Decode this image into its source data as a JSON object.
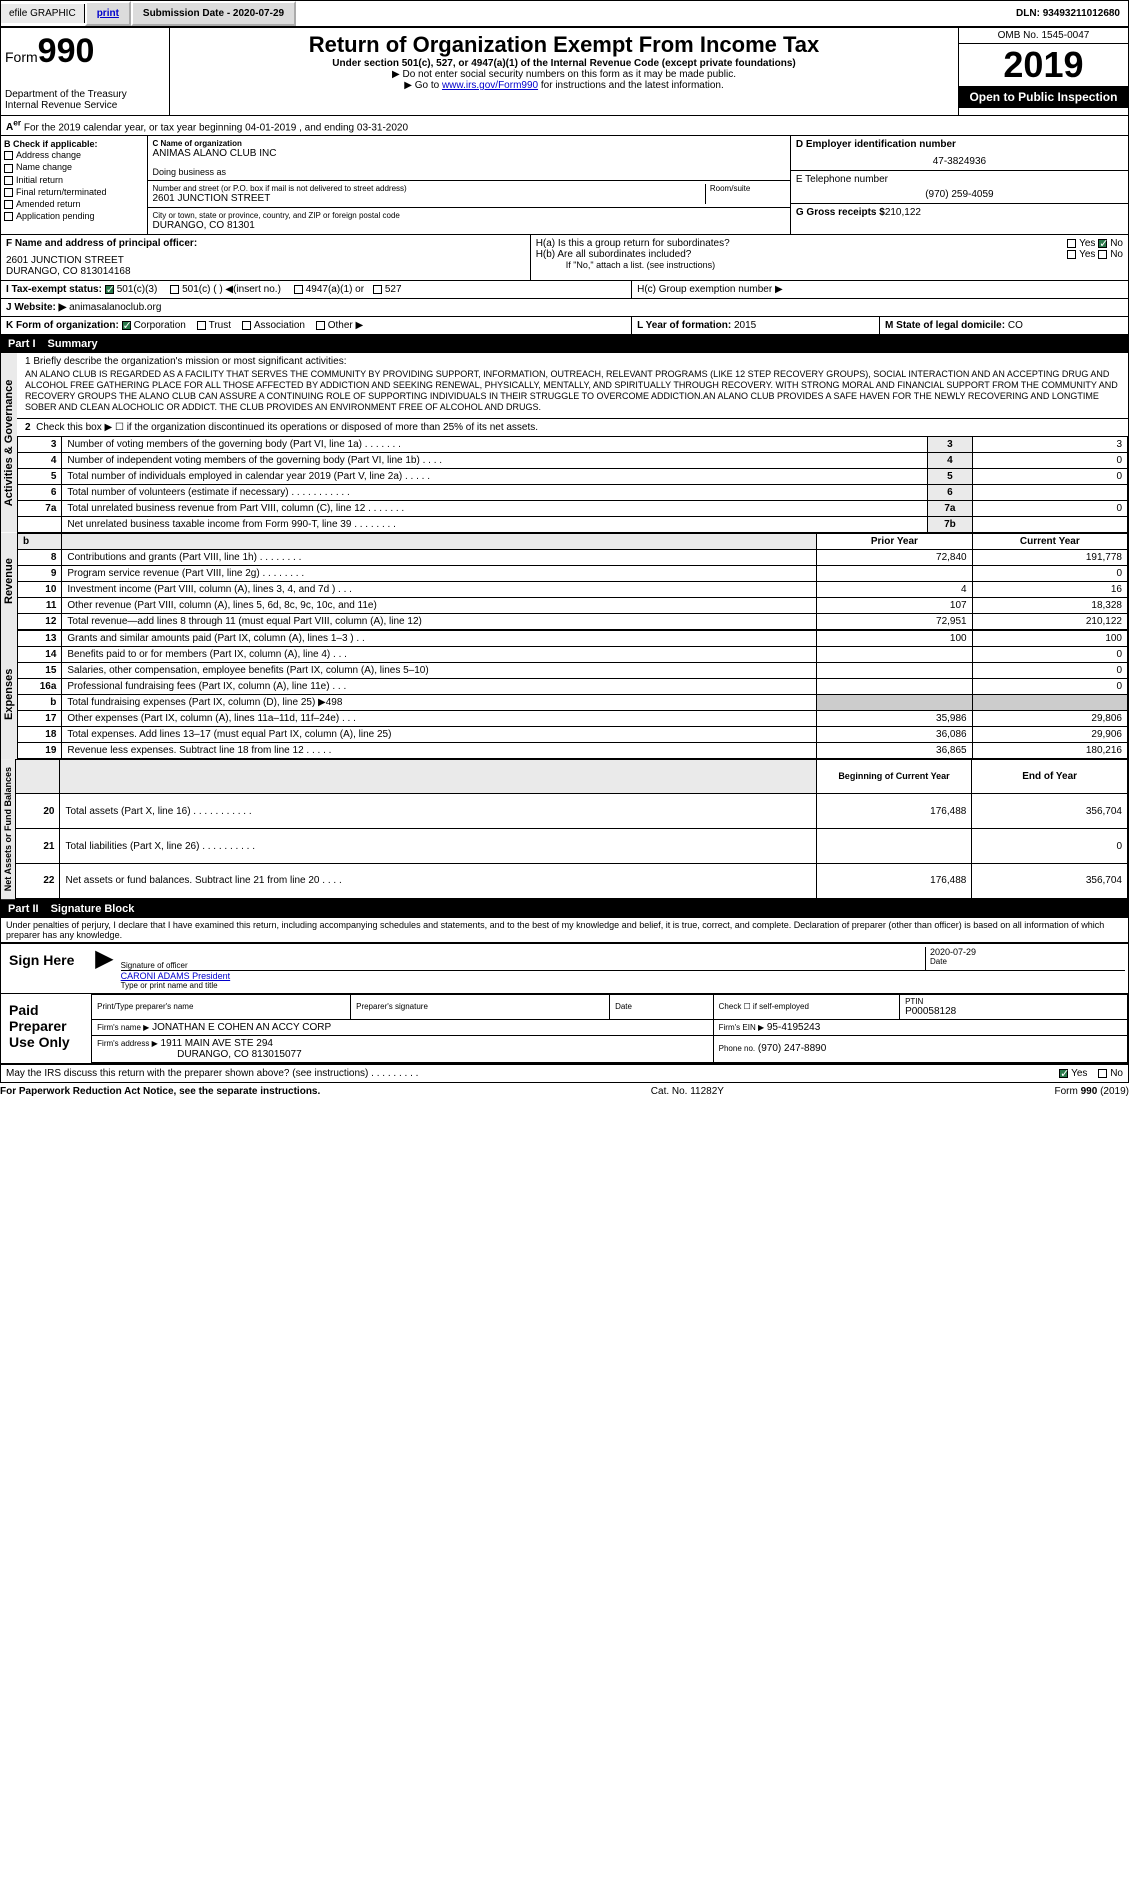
{
  "topbar": {
    "efile": "efile GRAPHIC",
    "print": "print",
    "submission_label": "Submission Date - ",
    "submission_date": "2020-07-29",
    "dln_label": "DLN: ",
    "dln": "93493211012680"
  },
  "header": {
    "form_label": "Form",
    "form_num": "990",
    "dept": "Department of the Treasury",
    "irs": "Internal Revenue Service",
    "title": "Return of Organization Exempt From Income Tax",
    "subtitle": "Under section 501(c), 527, or 4947(a)(1) of the Internal Revenue Code (except private foundations)",
    "note1": "▶ Do not enter social security numbers on this form as it may be made public.",
    "note2_pre": "▶ Go to ",
    "note2_link": "www.irs.gov/Form990",
    "note2_post": " for instructions and the latest information.",
    "omb": "OMB No. 1545-0047",
    "year": "2019",
    "open": "Open to Public Inspection"
  },
  "period": {
    "text": "For the 2019 calendar year, or tax year beginning 04-01-2019    , and ending 03-31-2020"
  },
  "section_b": {
    "label": "B Check if applicable:",
    "items": [
      "Address change",
      "Name change",
      "Initial return",
      "Final return/terminated",
      "Amended return",
      "Application pending"
    ]
  },
  "section_c": {
    "name_label": "C Name of organization",
    "name": "ANIMAS ALANO CLUB INC",
    "dba_label": "Doing business as",
    "dba": "",
    "addr_label": "Number and street (or P.O. box if mail is not delivered to street address)",
    "addr": "2601 JUNCTION STREET",
    "room_label": "Room/suite",
    "city_label": "City or town, state or province, country, and ZIP or foreign postal code",
    "city": "DURANGO, CO  81301"
  },
  "section_d": {
    "label": "D Employer identification number",
    "ein": "47-3824936"
  },
  "section_e": {
    "label": "E Telephone number",
    "phone": "(970) 259-4059"
  },
  "section_g": {
    "label": "G Gross receipts $",
    "amount": "210,122"
  },
  "section_f": {
    "label": "F Name and address of principal officer:",
    "addr1": "2601 JUNCTION STREET",
    "addr2": "DURANGO, CO  813014168"
  },
  "section_h": {
    "ha": "H(a)  Is this a group return for subordinates?",
    "hb": "H(b)  Are all subordinates included?",
    "hb_note": "If \"No,\" attach a list. (see instructions)",
    "hc": "H(c)  Group exemption number ▶",
    "yes": "Yes",
    "no": "No"
  },
  "section_i": {
    "label": "I   Tax-exempt status:",
    "opt1": "501(c)(3)",
    "opt2": "501(c) (   ) ◀(insert no.)",
    "opt3": "4947(a)(1) or",
    "opt4": "527"
  },
  "section_j": {
    "label": "J   Website: ▶",
    "url": "animasalanoclub.org"
  },
  "section_k": {
    "label": "K Form of organization:",
    "corp": "Corporation",
    "trust": "Trust",
    "assoc": "Association",
    "other": "Other ▶"
  },
  "section_l": {
    "label": "L Year of formation:",
    "year": "2015"
  },
  "section_m": {
    "label": "M State of legal domicile:",
    "state": "CO"
  },
  "part1": {
    "header": "Part I",
    "title": "Summary",
    "vtab1": "Activities & Governance",
    "vtab2": "Revenue",
    "vtab3": "Expenses",
    "vtab4": "Net Assets or Fund Balances",
    "line1_label": "1   Briefly describe the organization's mission or most significant activities:",
    "mission": "AN ALANO CLUB IS REGARDED AS A FACILITY THAT SERVES THE COMMUNITY BY PROVIDING SUPPORT, INFORMATION, OUTREACH, RELEVANT PROGRAMS (LIKE 12 STEP RECOVERY GROUPS), SOCIAL INTERACTION AND AN ACCEPTING DRUG AND ALCOHOL FREE GATHERING PLACE FOR ALL THOSE AFFECTED BY ADDICTION AND SEEKING RENEWAL, PHYSICALLY, MENTALLY, AND SPIRITUALLY THROUGH RECOVERY. WITH STRONG MORAL AND FINANCIAL SUPPORT FROM THE COMMUNITY AND RECOVERY GROUPS THE ALANO CLUB CAN ASSURE A CONTINUING ROLE OF SUPPORTING INDIVIDUALS IN THEIR STRUGGLE TO OVERCOME ADDICTION.AN ALANO CLUB PROVIDES A SAFE HAVEN FOR THE NEWLY RECOVERING AND LONGTIME SOBER AND CLEAN ALOCHOLIC OR ADDICT. THE CLUB PROVIDES AN ENVIRONMENT FREE OF ALCOHOL AND DRUGS.",
    "line2": "Check this box ▶ ☐ if the organization discontinued its operations or disposed of more than 25% of its net assets.",
    "lines": [
      {
        "n": "3",
        "label": "Number of voting members of the governing body (Part VI, line 1a)  .    .    .    .    .    .    .",
        "box": "3",
        "val": "3"
      },
      {
        "n": "4",
        "label": "Number of independent voting members of the governing body (Part VI, line 1b)   .    .    .    .",
        "box": "4",
        "val": "0"
      },
      {
        "n": "5",
        "label": "Total number of individuals employed in calendar year 2019 (Part V, line 2a)    .    .    .    .    .",
        "box": "5",
        "val": "0"
      },
      {
        "n": "6",
        "label": "Total number of volunteers (estimate if necessary)   .    .    .    .    .    .    .    .    .    .    .",
        "box": "6",
        "val": ""
      },
      {
        "n": "7a",
        "label": "Total unrelated business revenue from Part VIII, column (C), line 12   .    .    .    .    .    .    .",
        "box": "7a",
        "val": "0"
      },
      {
        "n": "",
        "label": "Net unrelated business taxable income from Form 990-T, line 39    .    .    .    .    .    .    .    .",
        "box": "7b",
        "val": ""
      }
    ],
    "prior_year": "Prior Year",
    "current_year": "Current Year",
    "revenue_lines": [
      {
        "n": "8",
        "label": "Contributions and grants (Part VIII, line 1h)   .    .    .    .    .    .    .    .",
        "prior": "72,840",
        "curr": "191,778"
      },
      {
        "n": "9",
        "label": "Program service revenue (Part VIII, line 2g)   .    .    .    .    .    .    .    .",
        "prior": "",
        "curr": "0"
      },
      {
        "n": "10",
        "label": "Investment income (Part VIII, column (A), lines 3, 4, and 7d )    .    .    .",
        "prior": "4",
        "curr": "16"
      },
      {
        "n": "11",
        "label": "Other revenue (Part VIII, column (A), lines 5, 6d, 8c, 9c, 10c, and 11e)",
        "prior": "107",
        "curr": "18,328"
      },
      {
        "n": "12",
        "label": "Total revenue—add lines 8 through 11 (must equal Part VIII, column (A), line 12)",
        "prior": "72,951",
        "curr": "210,122"
      }
    ],
    "expense_lines": [
      {
        "n": "13",
        "label": "Grants and similar amounts paid (Part IX, column (A), lines 1–3 )  .    .",
        "prior": "100",
        "curr": "100"
      },
      {
        "n": "14",
        "label": "Benefits paid to or for members (Part IX, column (A), line 4)  .    .    .",
        "prior": "",
        "curr": "0"
      },
      {
        "n": "15",
        "label": "Salaries, other compensation, employee benefits (Part IX, column (A), lines 5–10)",
        "prior": "",
        "curr": "0"
      },
      {
        "n": "16a",
        "label": "Professional fundraising fees (Part IX, column (A), line 11e)  .    .    .",
        "prior": "",
        "curr": "0"
      },
      {
        "n": "b",
        "label": "Total fundraising expenses (Part IX, column (D), line 25) ▶498",
        "prior": "shaded",
        "curr": "shaded"
      },
      {
        "n": "17",
        "label": "Other expenses (Part IX, column (A), lines 11a–11d, 11f–24e)  .    .    .",
        "prior": "35,986",
        "curr": "29,806"
      },
      {
        "n": "18",
        "label": "Total expenses. Add lines 13–17 (must equal Part IX, column (A), line 25)",
        "prior": "36,086",
        "curr": "29,906"
      },
      {
        "n": "19",
        "label": "Revenue less expenses. Subtract line 18 from line 12  .    .    .    .    .",
        "prior": "36,865",
        "curr": "180,216"
      }
    ],
    "boy": "Beginning of Current Year",
    "eoy": "End of Year",
    "net_lines": [
      {
        "n": "20",
        "label": "Total assets (Part X, line 16)  .    .    .    .    .    .    .    .    .    .    .",
        "prior": "176,488",
        "curr": "356,704"
      },
      {
        "n": "21",
        "label": "Total liabilities (Part X, line 26)    .    .    .    .    .    .    .    .    .    .",
        "prior": "",
        "curr": "0"
      },
      {
        "n": "22",
        "label": "Net assets or fund balances. Subtract line 21 from line 20  .    .    .    .",
        "prior": "176,488",
        "curr": "356,704"
      }
    ]
  },
  "part2": {
    "header": "Part II",
    "title": "Signature Block",
    "penalty": "Under penalties of perjury, I declare that I have examined this return, including accompanying schedules and statements, and to the best of my knowledge and belief, it is true, correct, and complete. Declaration of preparer (other than officer) is based on all information of which preparer has any knowledge.",
    "sign_here": "Sign Here",
    "sig_officer": "Signature of officer",
    "date": "Date",
    "sig_date": "2020-07-29",
    "name_title": "CARONI ADAMS President",
    "type_name": "Type or print name and title",
    "paid": "Paid Preparer Use Only",
    "prep_name_label": "Print/Type preparer's name",
    "prep_sig_label": "Preparer's signature",
    "date_label": "Date",
    "check_self": "Check ☐ if self-employed",
    "ptin_label": "PTIN",
    "ptin": "P00058128",
    "firm_name_label": "Firm's name    ▶",
    "firm_name": "JONATHAN E COHEN AN ACCY CORP",
    "firm_ein_label": "Firm's EIN ▶",
    "firm_ein": "95-4195243",
    "firm_addr_label": "Firm's address ▶",
    "firm_addr": "1911 MAIN AVE STE 294",
    "firm_city": "DURANGO, CO  813015077",
    "phone_label": "Phone no.",
    "phone": "(970) 247-8890",
    "discuss": "May the IRS discuss this return with the preparer shown above? (see instructions)    .    .    .    .    .    .    .    .    .",
    "yes": "Yes",
    "no": "No"
  },
  "footer": {
    "paperwork": "For Paperwork Reduction Act Notice, see the separate instructions.",
    "cat": "Cat. No. 11282Y",
    "form": "Form 990 (2019)"
  }
}
